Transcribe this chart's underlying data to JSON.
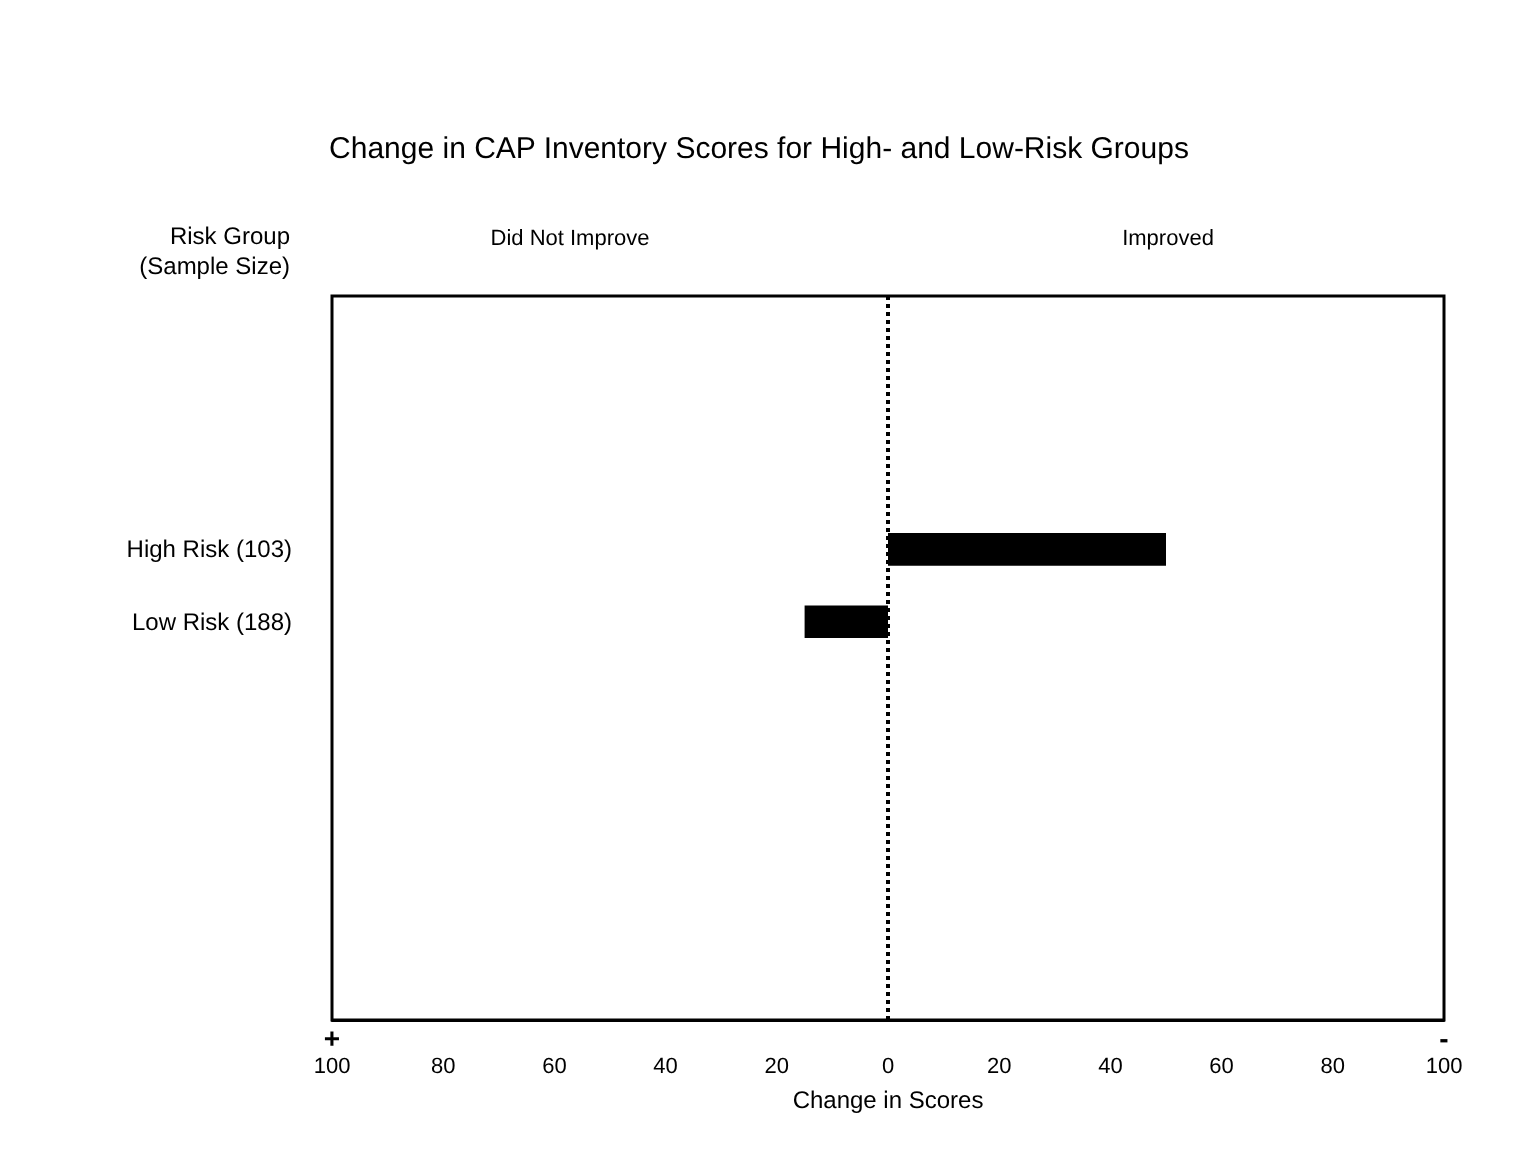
{
  "chart_data": {
    "type": "bar",
    "orientation": "horizontal",
    "title": "Change in CAP Inventory Scores for High- and Low-Risk Groups",
    "xlabel": "Change in Scores",
    "categories": [
      null,
      null,
      null,
      "High Risk (103)",
      "Low Risk (188)",
      null,
      null,
      null,
      null,
      null
    ],
    "values": [
      null,
      null,
      null,
      50,
      -15,
      null,
      null,
      null,
      null,
      null
    ],
    "color": "#000000",
    "xlim": [
      -100,
      100
    ],
    "xticks": [
      {
        "value": -100,
        "label": "100"
      },
      {
        "value": -80,
        "label": "80"
      },
      {
        "value": -60,
        "label": "60"
      },
      {
        "value": -40,
        "label": "40"
      },
      {
        "value": -20,
        "label": "20"
      },
      0,
      {
        "value": 20,
        "label": "20"
      },
      {
        "value": 40,
        "label": "40"
      },
      {
        "value": 60,
        "label": "60"
      },
      {
        "value": 80,
        "label": "80"
      },
      {
        "value": 100,
        "label": "100"
      }
    ],
    "ref_lines": [
      {
        "axis": "x",
        "value": 0,
        "line_style": "dotted",
        "color": "#000000"
      }
    ],
    "annotations": [
      "Risk Group",
      "(Sample Size)",
      "Did Not Improve",
      "Improved",
      "+",
      "-"
    ],
    "grid": false
  }
}
